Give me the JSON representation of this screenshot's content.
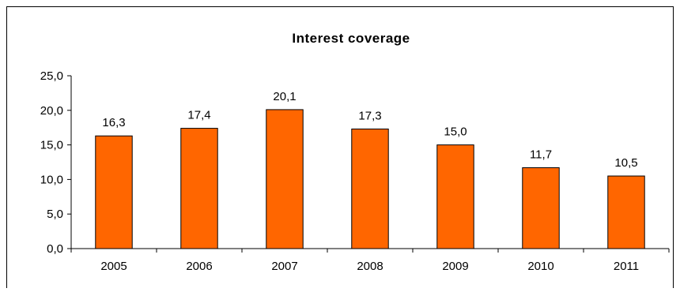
{
  "chart_data": {
    "type": "bar",
    "title": "Interest coverage",
    "xlabel": "",
    "ylabel": "",
    "categories": [
      "2005",
      "2006",
      "2007",
      "2008",
      "2009",
      "2010",
      "2011"
    ],
    "values": [
      16.3,
      17.4,
      20.1,
      17.3,
      15.0,
      11.7,
      10.5
    ],
    "value_labels": [
      "16,3",
      "17,4",
      "20,1",
      "17,3",
      "15,0",
      "11,7",
      "10,5"
    ],
    "ylim": [
      0,
      25
    ],
    "yticks": [
      0,
      5,
      10,
      15,
      20,
      25
    ],
    "ytick_labels": [
      "0,0",
      "5,0",
      "10,0",
      "15,0",
      "20,0",
      "25,0"
    ],
    "grid": false,
    "legend": "none",
    "colors": {
      "bar": "#ff6600",
      "bar_border": "#000000",
      "axis": "#000000",
      "frame": "#000000"
    }
  }
}
